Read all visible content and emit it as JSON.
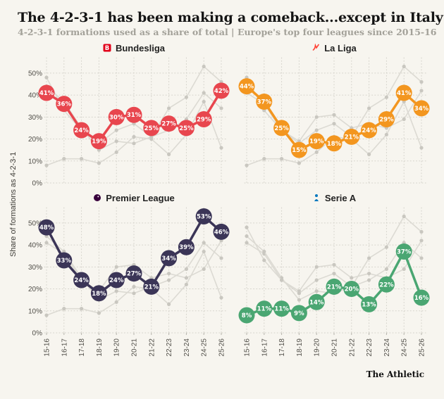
{
  "title": "The 4-2-3-1 has been making a comeback...except in Italy",
  "subtitle": "4-2-3-1 formations used as a share of total | Europe's top four leagues since 2015-16",
  "credit": "The Athletic",
  "chart_data": {
    "type": "line",
    "layout": "2x2 small multiples, focal series highlighted per panel with other leagues as gray context lines",
    "categories": [
      "15-16",
      "16-17",
      "17-18",
      "18-19",
      "19-20",
      "20-21",
      "21-22",
      "22-23",
      "23-24",
      "24-25",
      "25-26"
    ],
    "series": [
      {
        "name": "Bundesliga",
        "color": "#e8464e",
        "logo_color": "#e2001a",
        "values": [
          41,
          36,
          24,
          19,
          30,
          31,
          25,
          27,
          25,
          29,
          42
        ]
      },
      {
        "name": "La Liga",
        "color": "#f3961f",
        "logo_color": "#ff4235",
        "values": [
          44,
          37,
          25,
          15,
          19,
          18,
          21,
          24,
          29,
          41,
          34
        ]
      },
      {
        "name": "Premier League",
        "color": "#3b3557",
        "logo_color": "#38003c",
        "values": [
          48,
          33,
          24,
          18,
          24,
          27,
          21,
          34,
          39,
          53,
          46
        ]
      },
      {
        "name": "Serie A",
        "color": "#4aa672",
        "logo_color": "#0578be",
        "values": [
          8,
          11,
          11,
          9,
          14,
          21,
          20,
          13,
          22,
          37,
          16
        ]
      }
    ],
    "ylabel": "Share of formations as 4-2-3-1",
    "yticks": [
      "0%",
      "10%",
      "20%",
      "30%",
      "40%",
      "50%"
    ],
    "ylim": [
      0,
      57
    ],
    "grid": "dotted",
    "legend_position": "panel titles",
    "data_label_suffix": "%"
  }
}
